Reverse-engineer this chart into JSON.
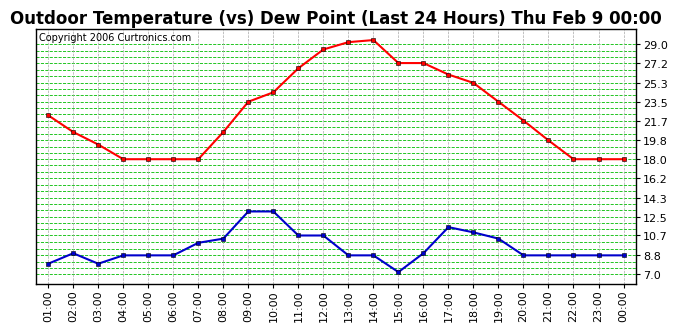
{
  "title": "Outdoor Temperature (vs) Dew Point (Last 24 Hours) Thu Feb 9 00:00",
  "copyright": "Copyright 2006 Curtronics.com",
  "x_labels": [
    "01:00",
    "02:00",
    "03:00",
    "04:00",
    "05:00",
    "06:00",
    "07:00",
    "08:00",
    "09:00",
    "10:00",
    "11:00",
    "12:00",
    "13:00",
    "14:00",
    "15:00",
    "16:00",
    "17:00",
    "18:00",
    "19:00",
    "20:00",
    "21:00",
    "22:00",
    "23:00",
    "00:00"
  ],
  "temp_data": [
    22.2,
    20.6,
    19.4,
    18.0,
    18.0,
    18.0,
    18.0,
    20.6,
    23.5,
    24.4,
    26.7,
    28.5,
    29.2,
    29.4,
    27.2,
    27.2,
    26.1,
    25.3,
    23.5,
    21.7,
    19.8,
    18.0,
    18.0,
    18.0
  ],
  "dew_data": [
    8.0,
    9.0,
    8.0,
    8.8,
    8.8,
    8.8,
    10.0,
    10.4,
    13.0,
    13.0,
    10.7,
    10.7,
    8.8,
    8.8,
    7.2,
    9.0,
    11.5,
    11.0,
    10.4,
    8.8,
    8.8,
    8.8,
    8.8,
    8.8
  ],
  "y_ticks": [
    7.0,
    8.8,
    10.7,
    12.5,
    14.3,
    16.2,
    18.0,
    19.8,
    21.7,
    23.5,
    25.3,
    27.2,
    29.0
  ],
  "ylim": [
    6.1,
    30.5
  ],
  "xlim": [
    -0.5,
    23.5
  ],
  "temp_color": "#ff0000",
  "dew_color": "#0000cc",
  "bg_color": "#ffffff",
  "grid_color_green": "#00bb00",
  "grid_color_gray": "#aaaaaa",
  "title_fontsize": 12,
  "copyright_fontsize": 7,
  "tick_fontsize": 8
}
